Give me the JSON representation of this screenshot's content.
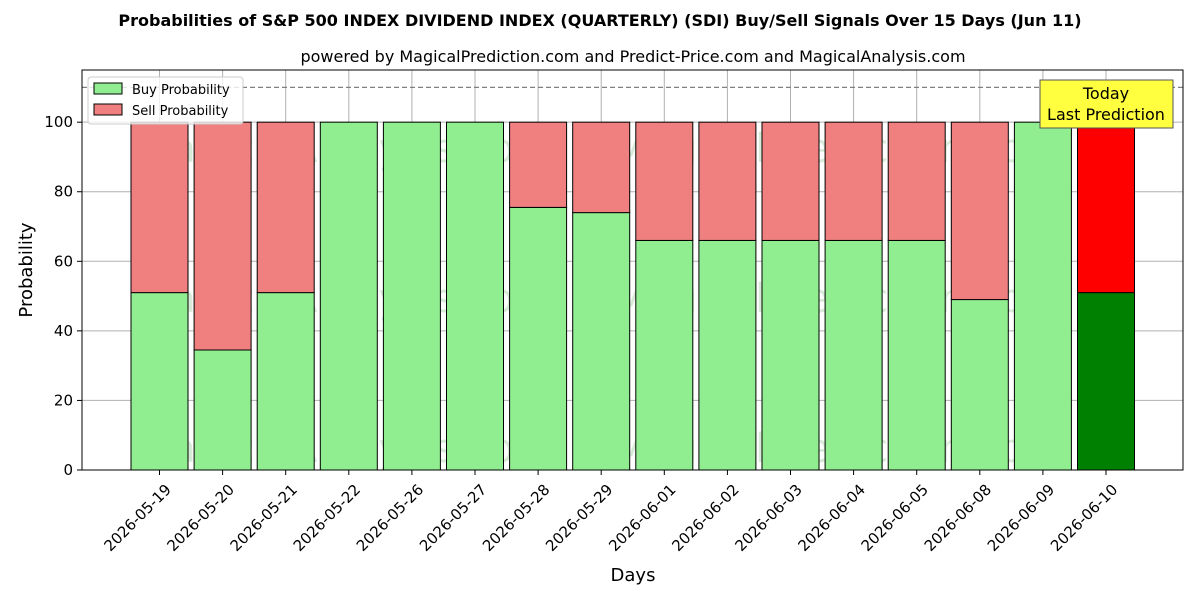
{
  "chart_data": {
    "type": "bar",
    "stacked": true,
    "title": "Probabilities of S&P 500 INDEX DIVIDEND INDEX (QUARTERLY) (SDI) Buy/Sell Signals Over 15 Days (Jun 11)",
    "subtitle": "powered by MagicalPrediction.com and Predict-Price.com and MagicalAnalysis.com",
    "xlabel": "Days",
    "ylabel": "Probability",
    "ylim": [
      0,
      115
    ],
    "yticks": [
      0,
      20,
      40,
      60,
      80,
      100
    ],
    "grid": true,
    "legend_position": "top-left",
    "reference_line": 110,
    "categories": [
      "2026-05-19",
      "2026-05-20",
      "2026-05-21",
      "2026-05-22",
      "2026-05-26",
      "2026-05-27",
      "2026-05-28",
      "2026-05-29",
      "2026-06-01",
      "2026-06-02",
      "2026-06-03",
      "2026-06-04",
      "2026-06-05",
      "2026-06-08",
      "2026-06-09",
      "2026-06-10"
    ],
    "series": [
      {
        "name": "Buy Probability",
        "color": "#90ee90",
        "values": [
          51,
          34.5,
          51,
          100,
          100,
          100,
          75.5,
          74,
          66,
          66,
          66,
          66,
          66,
          49,
          100,
          51
        ]
      },
      {
        "name": "Sell Probability",
        "color": "#f08080",
        "values": [
          49,
          65.5,
          49,
          0,
          0,
          0,
          24.5,
          26,
          34,
          34,
          34,
          34,
          34,
          51,
          0,
          49
        ]
      }
    ],
    "highlight": {
      "index": 15,
      "buy_color": "#008000",
      "sell_color": "#ff0000"
    },
    "annotation": {
      "lines": [
        "Today",
        "Last Prediction"
      ],
      "background": "#ffff40"
    },
    "watermarks": [
      "MagicalAnalysis.com",
      "MagicalPrediction.com"
    ]
  }
}
